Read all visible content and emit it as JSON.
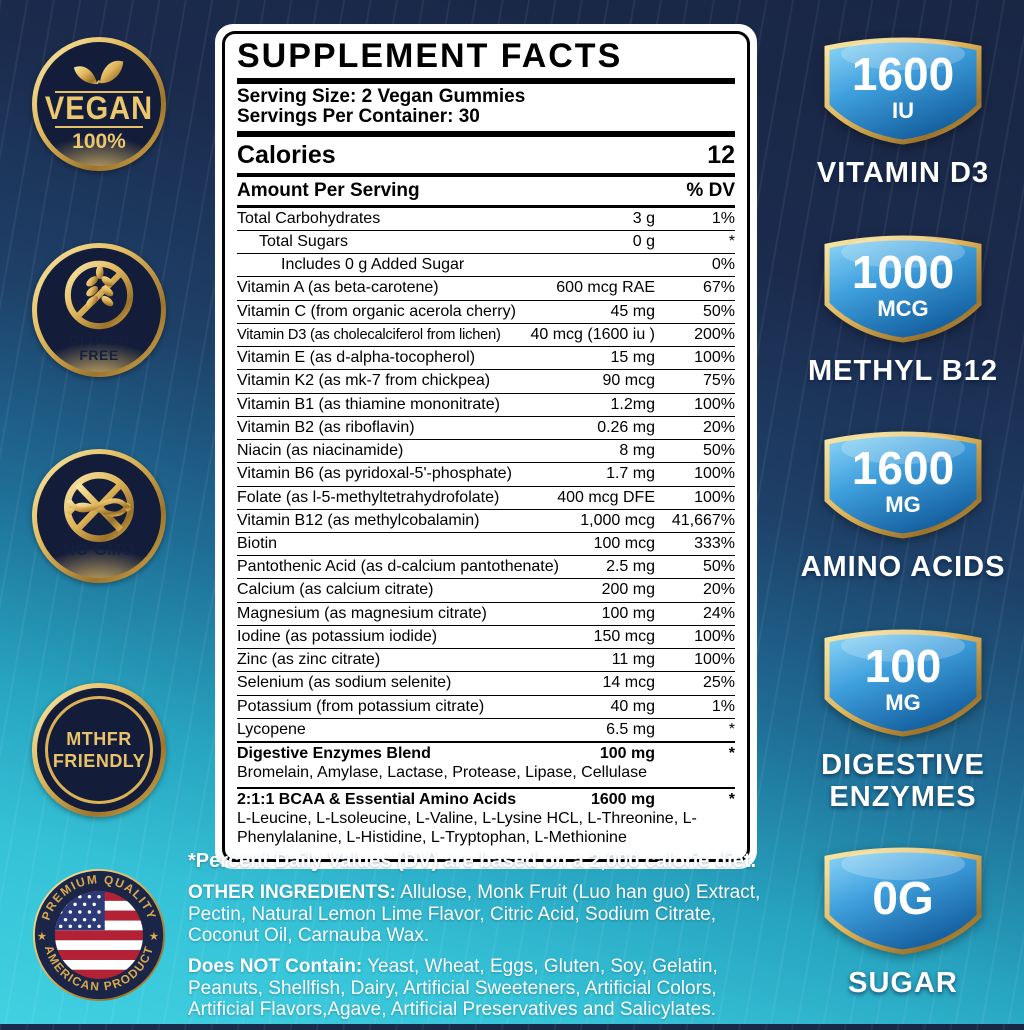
{
  "panel": {
    "title": "SUPPLEMENT FACTS",
    "serving_size": "Serving Size: 2 Vegan Gummies",
    "servings_per_container": "Servings Per Container: 30",
    "calories_label": "Calories",
    "calories_value": "12",
    "amount_header": "Amount Per Serving",
    "dv_header": "% DV",
    "rows": [
      {
        "name": "Total Carbohydrates",
        "amount": "3 g",
        "dv": "1%"
      },
      {
        "name": "Total Sugars",
        "amount": "0 g",
        "dv": "*",
        "indent": 1
      },
      {
        "name": "Includes 0 g Added Sugar",
        "amount": "",
        "dv": "0%",
        "indent": 2
      },
      {
        "name": "Vitamin A (as beta-carotene)",
        "amount": "600 mcg RAE",
        "dv": "67%"
      },
      {
        "name": "Vitamin C (from organic acerola cherry)",
        "amount": "45 mg",
        "dv": "50%"
      },
      {
        "name": "Vitamin D3 (as cholecalciferol from lichen)",
        "amount": "40 mcg (1600 iu )",
        "dv": "200%",
        "condensed": true
      },
      {
        "name": "Vitamin E (as d-alpha-tocopherol)",
        "amount": "15 mg",
        "dv": "100%"
      },
      {
        "name": "Vitamin K2 (as mk-7 from chickpea)",
        "amount": "90 mcg",
        "dv": "75%"
      },
      {
        "name": "Vitamin B1 (as thiamine mononitrate)",
        "amount": "1.2mg",
        "dv": "100%"
      },
      {
        "name": "Vitamin B2 (as riboflavin)",
        "amount": "0.26 mg",
        "dv": "20%"
      },
      {
        "name": "Niacin (as niacinamide)",
        "amount": "8 mg",
        "dv": "50%"
      },
      {
        "name": "Vitamin B6 (as pyridoxal-5'-phosphate)",
        "amount": "1.7 mg",
        "dv": "100%"
      },
      {
        "name": "Folate (as l-5-methyltetrahydrofolate)",
        "amount": "400 mcg DFE",
        "dv": "100%"
      },
      {
        "name": "Vitamin B12 (as methylcobalamin)",
        "amount": "1,000 mcg",
        "dv": "41,667%"
      },
      {
        "name": "Biotin",
        "amount": "100 mcg",
        "dv": "333%"
      },
      {
        "name": "Pantothenic Acid (as d-calcium pantothenate)",
        "amount": "2.5 mg",
        "dv": "50%"
      },
      {
        "name": "Calcium (as calcium citrate)",
        "amount": "200 mg",
        "dv": "20%"
      },
      {
        "name": "Magnesium (as magnesium citrate)",
        "amount": "100 mg",
        "dv": "24%"
      },
      {
        "name": "Iodine (as potassium iodide)",
        "amount": "150 mcg",
        "dv": "100%"
      },
      {
        "name": "Zinc (as zinc citrate)",
        "amount": "11 mg",
        "dv": "100%"
      },
      {
        "name": "Selenium (as sodium selenite)",
        "amount": "14 mcg",
        "dv": "25%"
      },
      {
        "name": "Potassium (from potassium citrate)",
        "amount": "40 mg",
        "dv": "1%"
      },
      {
        "name": "Lycopene",
        "amount": "6.5 mg",
        "dv": "*"
      },
      {
        "name": "Digestive Enzymes Blend",
        "amount": "100 mg",
        "dv": "*",
        "bold": true,
        "sub": "Bromelain, Amylase, Lactase, Protease, Lipase, Cellulase"
      },
      {
        "name": "2:1:1 BCAA & Essential Amino Acids",
        "amount": "1600 mg",
        "dv": "*",
        "bold": true,
        "sub": "L-Leucine, L-Lsoleucine, L-Valine, L-Lysine HCL, L-Threonine, L-Phenylalanine, L-Histidine, L-Tryptophan, L-Methionine"
      }
    ]
  },
  "left_badges": {
    "vegan": {
      "word": "VEGAN",
      "pct": "100%",
      "icon": "leaf-icon"
    },
    "gluten_free": {
      "line1": "GLUTEN",
      "line2": "FREE",
      "icon": "no-wheat-icon"
    },
    "no_gmo": {
      "text": "NO GMO",
      "icon": "no-gmo-icon"
    },
    "mthfr": {
      "line1": "MTHFR",
      "line2": "FRIENDLY"
    },
    "american": {
      "top_text": "PREMIUM QUALITY",
      "bottom_text": "AMERICAN PRODUCT",
      "star": "★",
      "icon": "us-flag-icon"
    }
  },
  "right_badges": [
    {
      "value": "1600",
      "unit": "IU",
      "label": "VITAMIN D3"
    },
    {
      "value": "1000",
      "unit": "MCG",
      "label": "METHYL B12"
    },
    {
      "value": "1600",
      "unit": "MG",
      "label": "AMINO ACIDS"
    },
    {
      "value": "100",
      "unit": "MG",
      "label": "DIGESTIVE ENZYMES"
    },
    {
      "value": "0G",
      "unit": "",
      "label": "SUGAR"
    }
  ],
  "footer": {
    "dv_note": "*Percent Daily Values (DV) are based on a 2,000 calorie diet.",
    "other_ingredients_label": "OTHER INGREDIENTS:",
    "other_ingredients": "Allulose, Monk Fruit (Luo han guo) Extract, Pectin, Natural Lemon Lime Flavor, Citric Acid, Sodium Citrate, Coconut Oil, Carnauba Wax.",
    "does_not_contain_label": "Does NOT Contain:",
    "does_not_contain": "Yeast, Wheat, Eggs, Gluten, Soy, Gelatin, Peanuts, Shellfish, Dairy, Artificial Sweeteners, Artificial Colors, Artificial Flavors,Agave, Artificial Preservatives and Salicylates."
  },
  "colors": {
    "background_top": "#19264a",
    "background_bottom": "#41d0e2",
    "gold": "#dcb156",
    "navy_badge": "#131d3a",
    "shield_blue_light": "#8fd8f8",
    "shield_blue_dark": "#135e9e",
    "flag_red": "#b22234",
    "flag_blue": "#2d3a77"
  }
}
